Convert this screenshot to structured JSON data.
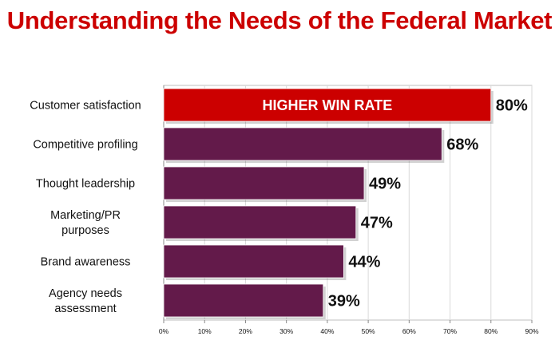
{
  "title": "Understanding the Needs of the Federal Market",
  "colors": {
    "title": "#cc0000",
    "bar": "#631a4a",
    "highlight": "#cc0000",
    "grid": "#d9d9d9"
  },
  "chart_data": {
    "type": "bar",
    "orientation": "horizontal",
    "categories": [
      [
        "Customer satisfaction"
      ],
      [
        "Competitive profiling"
      ],
      [
        "Thought leadership"
      ],
      [
        "Marketing/PR",
        "purposes"
      ],
      [
        "Brand awareness"
      ],
      [
        "Agency needs",
        "assessment"
      ]
    ],
    "values": [
      80,
      68,
      49,
      47,
      44,
      39
    ],
    "value_labels": [
      "80%",
      "68%",
      "49%",
      "47%",
      "44%",
      "39%"
    ],
    "highlight_index": 0,
    "highlight_text": "HIGHER WIN RATE",
    "xlim": [
      0,
      90
    ],
    "xticks": [
      0,
      10,
      20,
      30,
      40,
      50,
      60,
      70,
      80,
      90
    ],
    "xtick_labels": [
      "0%",
      "10%",
      "20%",
      "30%",
      "40%",
      "50%",
      "60%",
      "70%",
      "80%",
      "90%"
    ],
    "grid": true
  }
}
